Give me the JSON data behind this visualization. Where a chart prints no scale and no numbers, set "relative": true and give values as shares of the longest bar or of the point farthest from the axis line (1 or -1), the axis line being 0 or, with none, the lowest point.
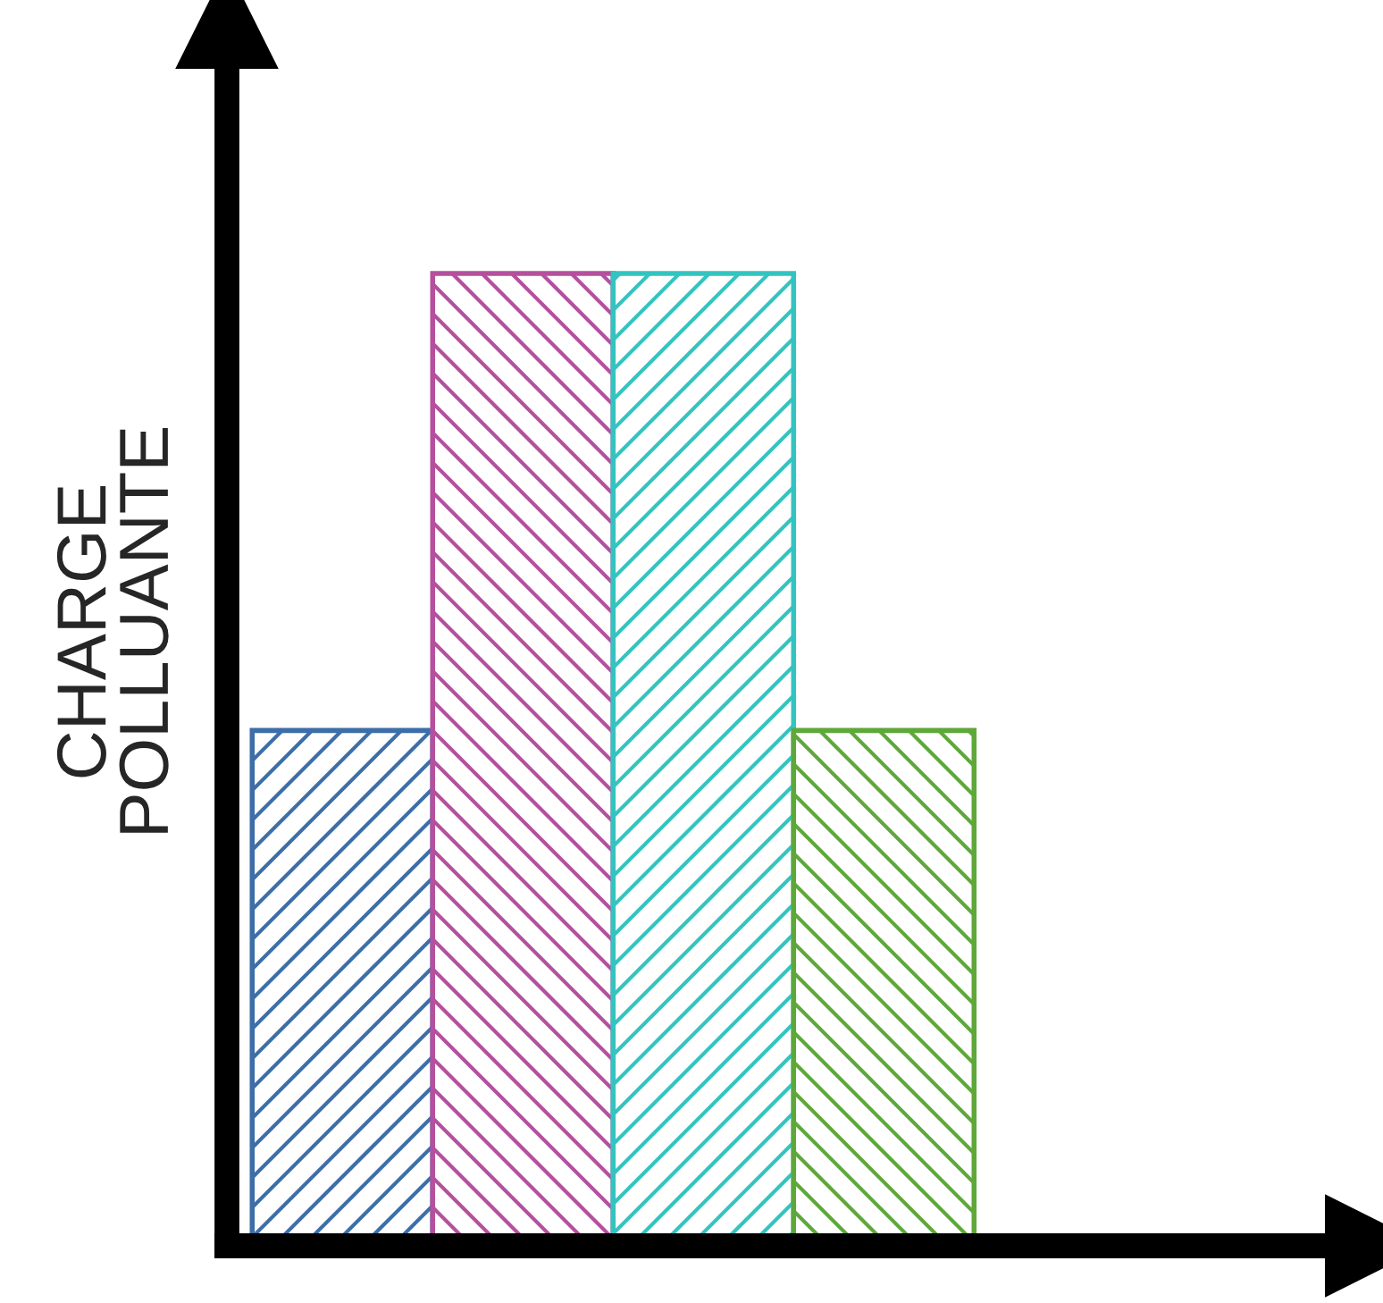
{
  "chart_data": {
    "type": "bar",
    "relative": true,
    "ylabel": "CHARGE\nPOLLUANTE",
    "categories": [
      null,
      null,
      null,
      null
    ],
    "values": [
      0.53,
      1,
      1,
      0.53
    ],
    "colors": [
      "#3d6ea8",
      "#b4509e",
      "#33c4c0",
      "#5ea83a"
    ],
    "grid": false,
    "legend": false
  }
}
